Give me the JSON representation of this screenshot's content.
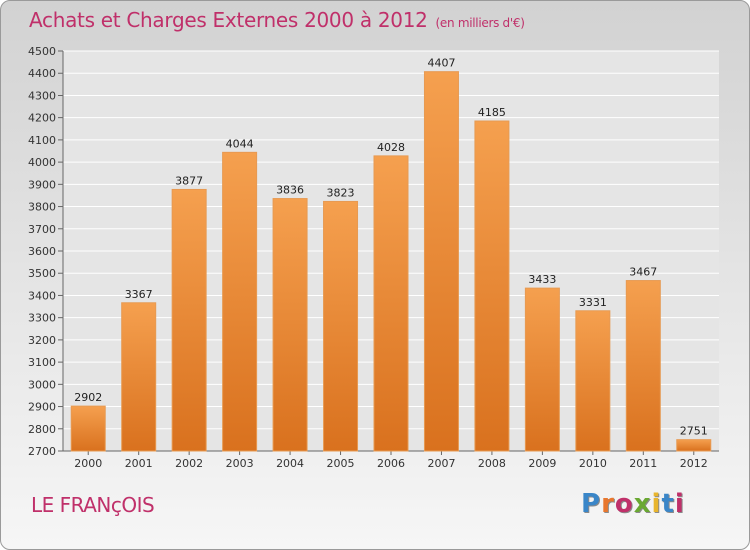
{
  "header": {
    "title": "Achats et Charges Externes 2000 à 2012",
    "unit": "(en milliers d'€)"
  },
  "footer": {
    "commune": "LE FRANçOIS",
    "logo_text": "Proxiti",
    "logo_colors": [
      "#3a86c8",
      "#e8772e",
      "#c0306a",
      "#6aa832",
      "#e8b52e",
      "#3a86c8",
      "#c0306a"
    ]
  },
  "colors": {
    "bar_top": "#f5a04f",
    "bar_bottom": "#d9711e",
    "title": "#c0306a"
  },
  "chart_data": {
    "type": "bar",
    "title": "Achats et Charges Externes 2000 à 2012",
    "subtitle": "(en milliers d'€)",
    "categories": [
      "2000",
      "2001",
      "2002",
      "2003",
      "2004",
      "2005",
      "2006",
      "2007",
      "2008",
      "2009",
      "2010",
      "2011",
      "2012"
    ],
    "values": [
      2902,
      3367,
      3877,
      4044,
      3836,
      3823,
      4028,
      4407,
      4185,
      3433,
      3331,
      3467,
      2751
    ],
    "ylim": [
      2700,
      4500
    ],
    "yticks": [
      2700,
      2800,
      2900,
      3000,
      3100,
      3200,
      3300,
      3400,
      3500,
      3600,
      3700,
      3800,
      3900,
      4000,
      4100,
      4200,
      4300,
      4400,
      4500
    ],
    "grid": true,
    "data_labels": true
  }
}
